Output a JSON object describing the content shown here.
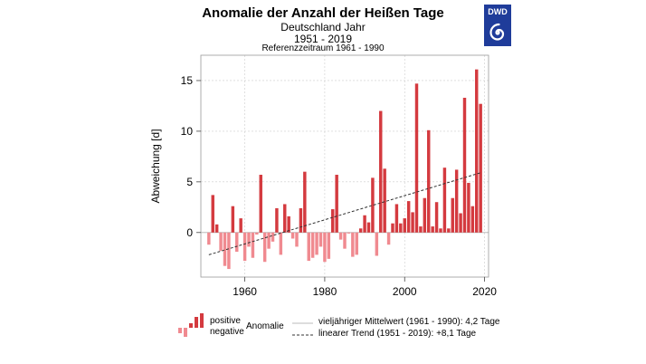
{
  "header": {
    "title": "Anomalie der Anzahl der Heißen Tage",
    "region": "Deutschland Jahr",
    "period": "1951 - 2019",
    "reference": "Referenzzeitraum 1961 - 1990"
  },
  "logo": {
    "text": "DWD",
    "color": "#1f3c9a"
  },
  "colors": {
    "positive": "#d43a3f",
    "negative": "#f08a90",
    "trend": "#333333",
    "mean": "#bbbbbb"
  },
  "legend": {
    "positive": "positive",
    "negative": "negative",
    "anomaly": "Anomalie",
    "mean": "vieljähriger Mittelwert (1961 - 1990): 4,2 Tage",
    "trend": "linearer Trend (1951 - 2019): +8,1 Tage"
  },
  "chart_data": {
    "type": "bar",
    "title": "Anomalie der Anzahl der Heißen Tage",
    "ylabel": "Abweichung [d]",
    "xlabel": "",
    "xlim": [
      1949,
      2021
    ],
    "ylim": [
      -4.4,
      17.5
    ],
    "xticks": [
      1960,
      1980,
      2000,
      2020
    ],
    "yticks": [
      0,
      5,
      10,
      15
    ],
    "grid": true,
    "x": [
      1951,
      1952,
      1953,
      1954,
      1955,
      1956,
      1957,
      1958,
      1959,
      1960,
      1961,
      1962,
      1963,
      1964,
      1965,
      1966,
      1967,
      1968,
      1969,
      1970,
      1971,
      1972,
      1973,
      1974,
      1975,
      1976,
      1977,
      1978,
      1979,
      1980,
      1981,
      1982,
      1983,
      1984,
      1985,
      1986,
      1987,
      1988,
      1989,
      1990,
      1991,
      1992,
      1993,
      1994,
      1995,
      1996,
      1997,
      1998,
      1999,
      2000,
      2001,
      2002,
      2003,
      2004,
      2005,
      2006,
      2007,
      2008,
      2009,
      2010,
      2011,
      2012,
      2013,
      2014,
      2015,
      2016,
      2017,
      2018,
      2019
    ],
    "values": [
      -1.2,
      3.7,
      0.8,
      -1.8,
      -3.3,
      -3.6,
      2.6,
      -1.9,
      1.4,
      -2.8,
      -1.4,
      -2.5,
      -0.2,
      5.7,
      -2.9,
      -1.6,
      -0.9,
      2.4,
      -2.2,
      2.8,
      1.6,
      -0.6,
      -1.4,
      2.4,
      6.0,
      -2.8,
      -2.5,
      -2.2,
      -1.4,
      -2.9,
      -2.6,
      2.3,
      5.7,
      -0.7,
      -1.6,
      -0.1,
      -2.4,
      -2.2,
      0.4,
      1.7,
      1.0,
      5.4,
      -2.3,
      12.0,
      6.3,
      -1.2,
      0.9,
      2.8,
      0.9,
      1.4,
      3.1,
      2.0,
      14.7,
      0.6,
      3.4,
      10.1,
      0.6,
      3.0,
      0.4,
      6.4,
      0.4,
      3.4,
      6.2,
      1.9,
      13.3,
      4.9,
      2.6,
      16.1,
      12.7
    ],
    "trend": {
      "x": [
        1951,
        2019
      ],
      "y": [
        -2.2,
        5.9
      ]
    }
  }
}
